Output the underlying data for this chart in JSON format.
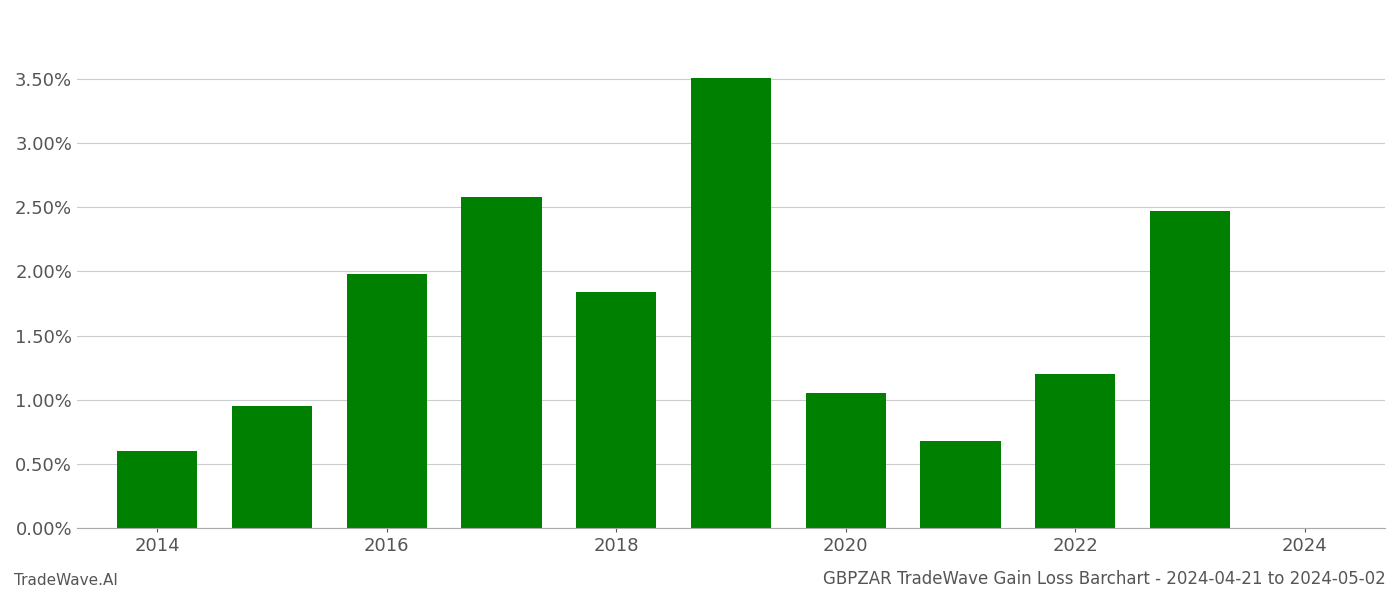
{
  "years": [
    2014,
    2015,
    2016,
    2017,
    2018,
    2019,
    2020,
    2021,
    2022,
    2023
  ],
  "values": [
    0.006,
    0.0095,
    0.0198,
    0.0258,
    0.0184,
    0.0351,
    0.0105,
    0.0068,
    0.012,
    0.0247
  ],
  "bar_color": "#008000",
  "background_color": "#ffffff",
  "grid_color": "#cccccc",
  "title": "GBPZAR TradeWave Gain Loss Barchart - 2024-04-21 to 2024-05-02",
  "footer_left": "TradeWave.AI",
  "ylim": [
    0,
    0.04
  ],
  "yticks": [
    0.0,
    0.005,
    0.01,
    0.015,
    0.02,
    0.025,
    0.03,
    0.035
  ],
  "xticks": [
    2014,
    2016,
    2018,
    2020,
    2022,
    2024
  ],
  "xlim": [
    2013.3,
    2024.7
  ],
  "bar_width": 0.7,
  "xlabel_fontsize": 13,
  "ylabel_fontsize": 13,
  "title_fontsize": 12,
  "footer_fontsize": 11
}
